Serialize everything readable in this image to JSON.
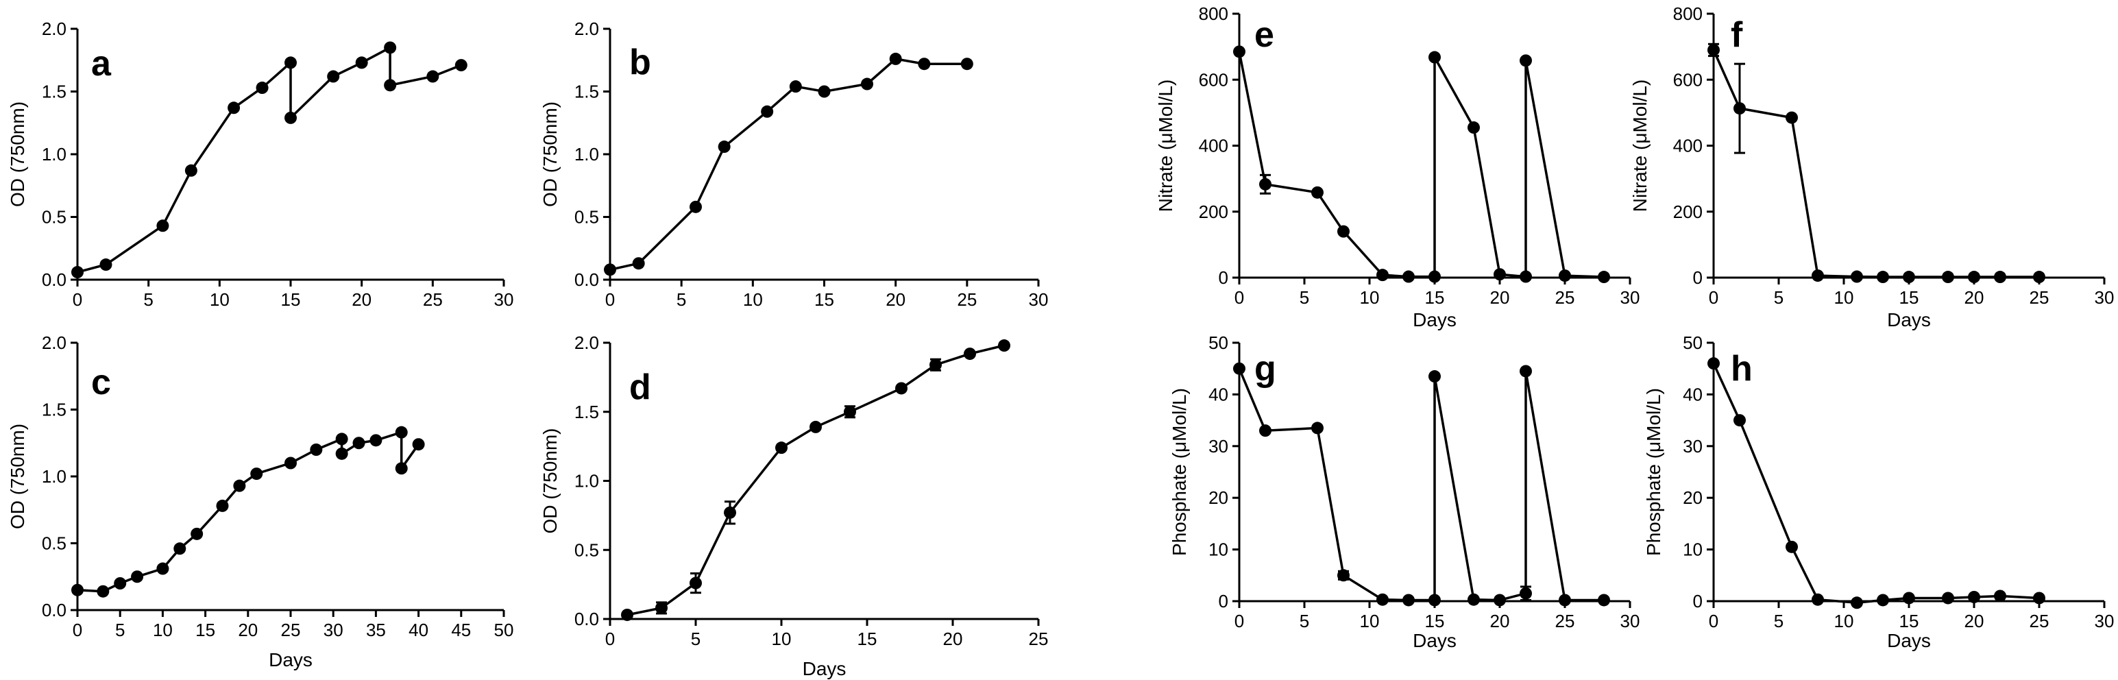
{
  "chart_data": [
    {
      "panel": "a",
      "type": "line",
      "xlabel": "",
      "ylabel": "OD (750nm)",
      "xlim": [
        0,
        30
      ],
      "ylim": [
        0,
        2.0
      ],
      "xticks": [
        0,
        5,
        10,
        15,
        20,
        25,
        30
      ],
      "yticks": [
        0.0,
        0.5,
        1.0,
        1.5,
        2.0
      ],
      "ytick_labels": [
        "0.0",
        "0.5",
        "1.0",
        "1.5",
        "2.0"
      ],
      "series": [
        {
          "name": "OD",
          "points": [
            [
              0,
              0.06
            ],
            [
              2,
              0.12
            ],
            [
              6,
              0.43
            ],
            [
              8,
              0.87
            ],
            [
              11,
              1.37
            ],
            [
              13,
              1.53
            ],
            [
              15,
              1.73
            ],
            [
              15,
              1.29
            ],
            [
              18,
              1.62
            ],
            [
              20,
              1.73
            ],
            [
              22,
              1.85
            ],
            [
              22,
              1.55
            ],
            [
              25,
              1.62
            ],
            [
              27,
              1.71
            ]
          ]
        }
      ]
    },
    {
      "panel": "b",
      "type": "line",
      "xlabel": "",
      "ylabel": "OD (750nm)",
      "xlim": [
        0,
        30
      ],
      "ylim": [
        0,
        2.0
      ],
      "xticks": [
        0,
        5,
        10,
        15,
        20,
        25,
        30
      ],
      "yticks": [
        0.0,
        0.5,
        1.0,
        1.5,
        2.0
      ],
      "ytick_labels": [
        "0.0",
        "0.5",
        "1.0",
        "1.5",
        "2.0"
      ],
      "series": [
        {
          "name": "OD",
          "points": [
            [
              0,
              0.08
            ],
            [
              2,
              0.13
            ],
            [
              6,
              0.58
            ],
            [
              8,
              1.06
            ],
            [
              11,
              1.34
            ],
            [
              13,
              1.54
            ],
            [
              15,
              1.5
            ],
            [
              18,
              1.56
            ],
            [
              20,
              1.76
            ],
            [
              22,
              1.72
            ],
            [
              25,
              1.72
            ]
          ]
        }
      ]
    },
    {
      "panel": "c",
      "type": "line",
      "xlabel": "Days",
      "ylabel": "OD (750nm)",
      "xlim": [
        0,
        50
      ],
      "ylim": [
        0,
        2.0
      ],
      "xticks": [
        0,
        5,
        10,
        15,
        20,
        25,
        30,
        35,
        40,
        45,
        50
      ],
      "yticks": [
        0.0,
        0.5,
        1.0,
        1.5,
        2.0
      ],
      "ytick_labels": [
        "0.0",
        "0.5",
        "1.0",
        "1.5",
        "2.0"
      ],
      "series": [
        {
          "name": "OD",
          "points": [
            [
              0,
              0.15
            ],
            [
              3,
              0.14
            ],
            [
              5,
              0.2
            ],
            [
              7,
              0.25
            ],
            [
              10,
              0.31
            ],
            [
              12,
              0.46
            ],
            [
              14,
              0.57
            ],
            [
              17,
              0.78
            ],
            [
              19,
              0.93
            ],
            [
              21,
              1.02
            ],
            [
              25,
              1.1
            ],
            [
              28,
              1.2
            ],
            [
              31,
              1.28
            ],
            [
              31,
              1.17
            ],
            [
              33,
              1.25
            ],
            [
              35,
              1.27
            ],
            [
              38,
              1.33
            ],
            [
              38,
              1.06
            ],
            [
              40,
              1.24
            ]
          ]
        }
      ]
    },
    {
      "panel": "d",
      "type": "line",
      "xlabel": "Days",
      "ylabel": "OD (750nm)",
      "xlim": [
        0,
        25
      ],
      "ylim": [
        0,
        2.0
      ],
      "xticks": [
        0,
        5,
        10,
        15,
        20,
        25
      ],
      "yticks": [
        0.0,
        0.5,
        1.0,
        1.5,
        2.0
      ],
      "ytick_labels": [
        "0.0",
        "0.5",
        "1.0",
        "1.5",
        "2.0"
      ],
      "series": [
        {
          "name": "OD",
          "points": [
            [
              1,
              0.03
            ],
            [
              3,
              0.08
            ],
            [
              5,
              0.26
            ],
            [
              7,
              0.77
            ],
            [
              10,
              1.24
            ],
            [
              12,
              1.39
            ],
            [
              14,
              1.5
            ],
            [
              17,
              1.67
            ],
            [
              19,
              1.84
            ],
            [
              21,
              1.92
            ],
            [
              23,
              1.98
            ]
          ]
        }
      ],
      "error_bars": [
        [
          3,
          0.04
        ],
        [
          5,
          0.07
        ],
        [
          7,
          0.08
        ],
        [
          14,
          0.04
        ],
        [
          19,
          0.04
        ]
      ]
    },
    {
      "panel": "e",
      "type": "line",
      "xlabel": "Days",
      "ylabel": "Nitrate (μMol/L)",
      "xlim": [
        0,
        30
      ],
      "ylim": [
        0,
        800
      ],
      "xticks": [
        0,
        5,
        10,
        15,
        20,
        25,
        30
      ],
      "yticks": [
        0,
        200,
        400,
        600,
        800
      ],
      "ytick_labels": [
        "0",
        "200",
        "400",
        "600",
        "800"
      ],
      "series": [
        {
          "name": "Nitrate",
          "points": [
            [
              0,
              685
            ],
            [
              2,
              283
            ],
            [
              6,
              258
            ],
            [
              8,
              140
            ],
            [
              11,
              8
            ],
            [
              13,
              3
            ],
            [
              15,
              3
            ],
            [
              15,
              668
            ],
            [
              18,
              455
            ],
            [
              20,
              10
            ],
            [
              22,
              3
            ],
            [
              22,
              658
            ],
            [
              25,
              6
            ],
            [
              28,
              2
            ]
          ]
        }
      ],
      "error_bars": [
        [
          2,
          28
        ]
      ]
    },
    {
      "panel": "f",
      "type": "line",
      "xlabel": "Days",
      "ylabel": "Nitrate (μMol/L)",
      "xlim": [
        0,
        30
      ],
      "ylim": [
        0,
        800
      ],
      "xticks": [
        0,
        5,
        10,
        15,
        20,
        25,
        30
      ],
      "yticks": [
        0,
        200,
        400,
        600,
        800
      ],
      "ytick_labels": [
        "0",
        "200",
        "400",
        "600",
        "800"
      ],
      "series": [
        {
          "name": "Nitrate",
          "points": [
            [
              0,
              690
            ],
            [
              2,
              513
            ],
            [
              6,
              485
            ],
            [
              8,
              6
            ],
            [
              11,
              3
            ],
            [
              13,
              2
            ],
            [
              15,
              2
            ],
            [
              18,
              2
            ],
            [
              20,
              2
            ],
            [
              22,
              2
            ],
            [
              25,
              2
            ]
          ]
        }
      ],
      "error_bars": [
        [
          0,
          18
        ],
        [
          2,
          135
        ]
      ]
    },
    {
      "panel": "g",
      "type": "line",
      "xlabel": "Days",
      "ylabel": "Phosphate (μMol/L)",
      "xlim": [
        0,
        30
      ],
      "ylim": [
        0,
        50
      ],
      "xticks": [
        0,
        5,
        10,
        15,
        20,
        25,
        30
      ],
      "yticks": [
        0,
        10,
        20,
        30,
        40,
        50
      ],
      "ytick_labels": [
        "0",
        "10",
        "20",
        "30",
        "40",
        "50"
      ],
      "series": [
        {
          "name": "Phosphate",
          "points": [
            [
              0,
              45
            ],
            [
              2,
              33
            ],
            [
              6,
              33.5
            ],
            [
              8,
              5
            ],
            [
              11,
              0.3
            ],
            [
              13,
              0.2
            ],
            [
              15,
              0.2
            ],
            [
              15,
              43.5
            ],
            [
              18,
              0.3
            ],
            [
              20,
              0.2
            ],
            [
              22,
              1.5
            ],
            [
              22,
              44.5
            ],
            [
              25,
              0.2
            ],
            [
              28,
              0.2
            ]
          ]
        }
      ],
      "error_bars": [
        [
          8,
          0.8
        ],
        [
          22,
          1.3
        ]
      ]
    },
    {
      "panel": "h",
      "type": "line",
      "xlabel": "Days",
      "ylabel": "Phosphate (μMol/L)",
      "xlim": [
        0,
        30
      ],
      "ylim": [
        0,
        50
      ],
      "xticks": [
        0,
        5,
        10,
        15,
        20,
        25,
        30
      ],
      "yticks": [
        0,
        10,
        20,
        30,
        40,
        50
      ],
      "ytick_labels": [
        "0",
        "10",
        "20",
        "30",
        "40",
        "50"
      ],
      "series": [
        {
          "name": "Phosphate",
          "points": [
            [
              0,
              46
            ],
            [
              2,
              35
            ],
            [
              6,
              10.5
            ],
            [
              8,
              0.3
            ],
            [
              11,
              -0.3
            ],
            [
              13,
              0.2
            ],
            [
              15,
              0.6
            ],
            [
              18,
              0.6
            ],
            [
              20,
              0.8
            ],
            [
              22,
              1.0
            ],
            [
              25,
              0.6
            ]
          ]
        }
      ]
    }
  ]
}
